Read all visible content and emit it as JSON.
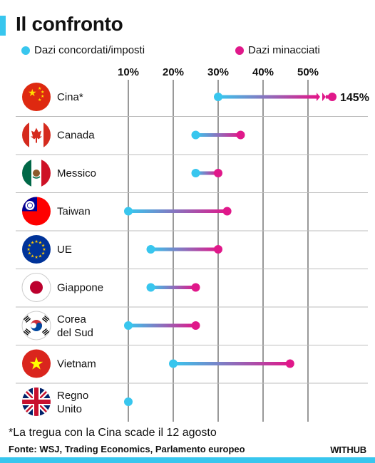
{
  "title": "Il confronto",
  "legend": [
    {
      "label": "Dazi concordati/imposti",
      "color": "#38c6ee"
    },
    {
      "label": "Dazi minacciati",
      "color": "#e0188a"
    }
  ],
  "footnote": "*La tregua con la Cina scade il 12 agosto",
  "source": "Fonte: WSJ, Trading Economics, Parlamento europeo",
  "brand": "WITHUB",
  "chart_data": {
    "type": "dumbbell",
    "x_ticks": [
      "10%",
      "20%",
      "30%",
      "40%",
      "50%"
    ],
    "x_tick_values": [
      10,
      20,
      30,
      40,
      50
    ],
    "xlim": [
      0,
      57
    ],
    "grid": true,
    "series": [
      {
        "name": "Dazi concordati/imposti",
        "color": "#38c6ee"
      },
      {
        "name": "Dazi minacciati",
        "color": "#e0188a"
      }
    ],
    "rows": [
      {
        "label": "Cina*",
        "flag": "china-flag",
        "agreed": 30,
        "threatened": 145,
        "threatened_label": "145%",
        "broken_axis": true
      },
      {
        "label": "Canada",
        "flag": "canada-flag",
        "agreed": 25,
        "threatened": 35
      },
      {
        "label": "Messico",
        "flag": "mexico-flag",
        "agreed": 25,
        "threatened": 30
      },
      {
        "label": "Taiwan",
        "flag": "taiwan-flag",
        "agreed": 10,
        "threatened": 32
      },
      {
        "label": "UE",
        "flag": "eu-flag",
        "agreed": 15,
        "threatened": 30
      },
      {
        "label": "Giappone",
        "flag": "japan-flag",
        "agreed": 15,
        "threatened": 25
      },
      {
        "label": "Corea\ndel Sud",
        "flag": "south-korea-flag",
        "agreed": 10,
        "threatened": 25
      },
      {
        "label": "Vietnam",
        "flag": "vietnam-flag",
        "agreed": 20,
        "threatened": 46
      },
      {
        "label": "Regno\nUnito",
        "flag": "uk-flag",
        "agreed": 10,
        "threatened": null
      }
    ]
  }
}
